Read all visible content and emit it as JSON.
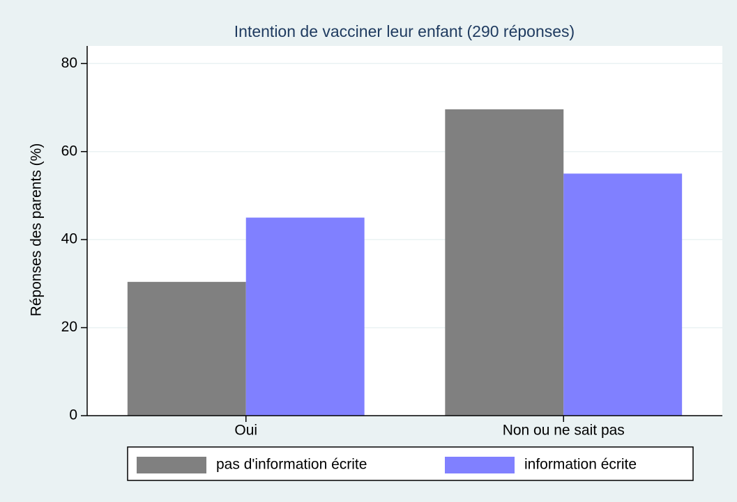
{
  "chart_data": {
    "type": "bar",
    "title": "Intention de vacciner leur enfant (290 réponses)",
    "y_label": "Réponses des parents (%)",
    "categories": [
      "Oui",
      "Non ou ne sait pas"
    ],
    "series": [
      {
        "name": "pas d'information écrite",
        "color": "#808080",
        "values": [
          30.4,
          69.6
        ]
      },
      {
        "name": "information écrite",
        "color": "#8080ff",
        "values": [
          45,
          55
        ]
      }
    ],
    "ylim": [
      0,
      84
    ],
    "yticks": [
      0,
      20,
      40,
      60,
      80
    ],
    "grid": true
  }
}
